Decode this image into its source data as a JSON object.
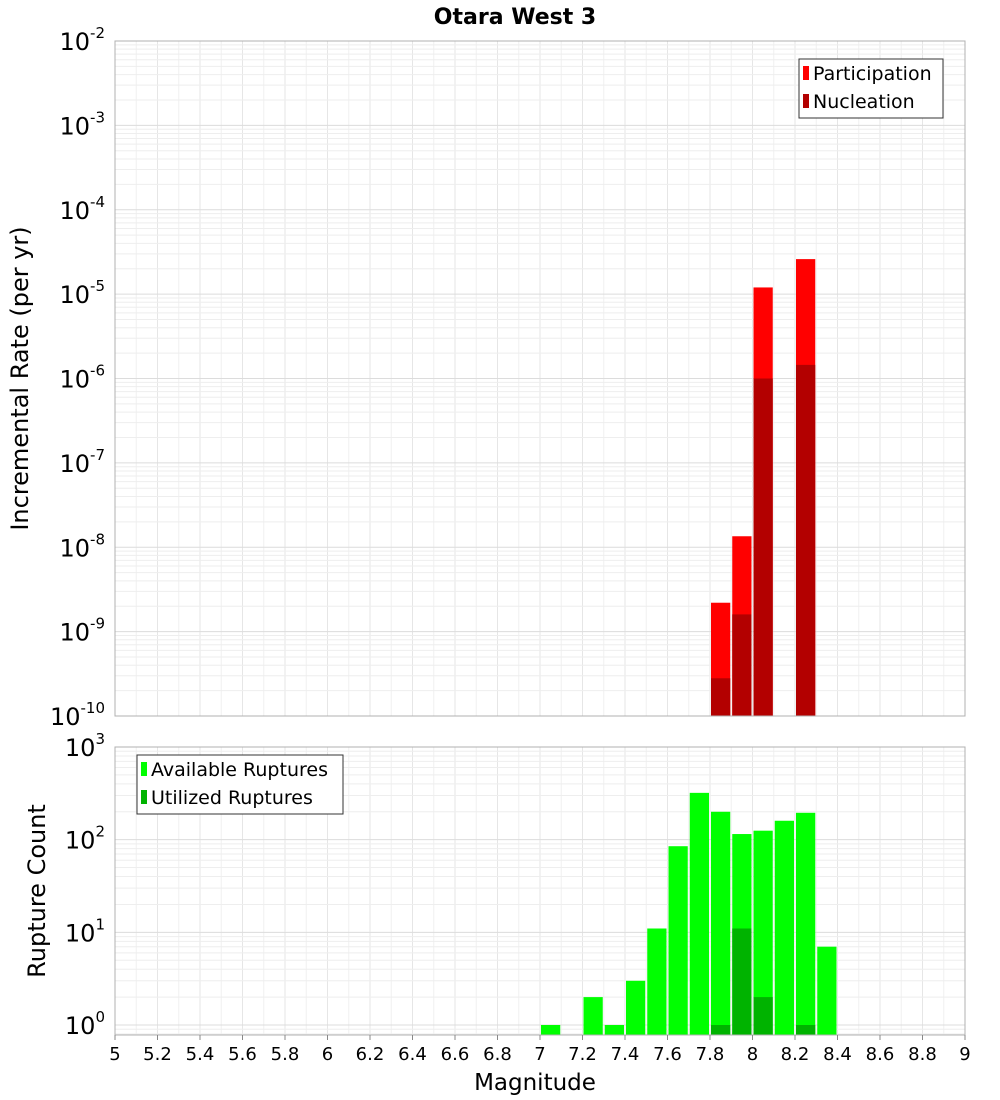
{
  "title": "Otara West 3",
  "chart_data": [
    {
      "type": "bar",
      "panel": "top",
      "ylabel": "Incremental Rate (per yr)",
      "y_scale": "log",
      "ylim": [
        1e-10,
        0.01
      ],
      "y_ticks": [
        {
          "mant": "10",
          "exp": "-2",
          "value": 0.01
        },
        {
          "mant": "10",
          "exp": "-3",
          "value": 0.001
        },
        {
          "mant": "10",
          "exp": "-4",
          "value": 0.0001
        },
        {
          "mant": "10",
          "exp": "-5",
          "value": 1e-05
        },
        {
          "mant": "10",
          "exp": "-6",
          "value": 1e-06
        },
        {
          "mant": "10",
          "exp": "-7",
          "value": 1e-07
        },
        {
          "mant": "10",
          "exp": "-8",
          "value": 1e-08
        },
        {
          "mant": "10",
          "exp": "-9",
          "value": 1e-09
        },
        {
          "mant": "10",
          "exp": "-10",
          "value": 1e-10
        }
      ],
      "xlim": [
        5,
        9
      ],
      "bar_width": 0.1,
      "grid": true,
      "legend_position": "top-right",
      "series": [
        {
          "name": "Participation",
          "color": "#ff0000",
          "x": [
            7.85,
            7.95,
            8.05,
            8.25
          ],
          "values": [
            2.2e-09,
            1.35e-08,
            1.2e-05,
            2.6e-05
          ]
        },
        {
          "name": "Nucleation",
          "color": "#b30000",
          "x": [
            7.85,
            7.95,
            8.05,
            8.25
          ],
          "values": [
            2.8e-10,
            1.6e-09,
            1e-06,
            1.45e-06
          ]
        }
      ]
    },
    {
      "type": "bar",
      "panel": "bottom",
      "ylabel": "Rupture Count",
      "xlabel": "Magnitude",
      "y_scale": "log",
      "ylim": [
        0.78,
        1000
      ],
      "y_ticks": [
        {
          "mant": "10",
          "exp": "3",
          "value": 1000
        },
        {
          "mant": "10",
          "exp": "2",
          "value": 100
        },
        {
          "mant": "10",
          "exp": "1",
          "value": 10
        },
        {
          "mant": "10",
          "exp": "0",
          "value": 1
        }
      ],
      "xlim": [
        5,
        9
      ],
      "x_ticks": [
        "5",
        "5.2",
        "5.4",
        "5.6",
        "5.8",
        "6",
        "6.2",
        "6.4",
        "6.6",
        "6.8",
        "7",
        "7.2",
        "7.4",
        "7.6",
        "7.8",
        "8",
        "8.2",
        "8.4",
        "8.6",
        "8.8",
        "9"
      ],
      "bar_width": 0.1,
      "grid": true,
      "legend_position": "top-left",
      "series": [
        {
          "name": "Available Ruptures",
          "color": "#00ff00",
          "x": [
            7.05,
            7.25,
            7.35,
            7.45,
            7.55,
            7.65,
            7.75,
            7.85,
            7.95,
            8.05,
            8.15,
            8.25,
            8.35
          ],
          "values": [
            1,
            2,
            1,
            3,
            11,
            85,
            320,
            200,
            115,
            125,
            160,
            195,
            7
          ]
        },
        {
          "name": "Utilized Ruptures",
          "color": "#00b300",
          "x": [
            7.85,
            7.95,
            8.05,
            8.25
          ],
          "values": [
            1,
            11,
            2,
            1
          ]
        }
      ]
    }
  ]
}
